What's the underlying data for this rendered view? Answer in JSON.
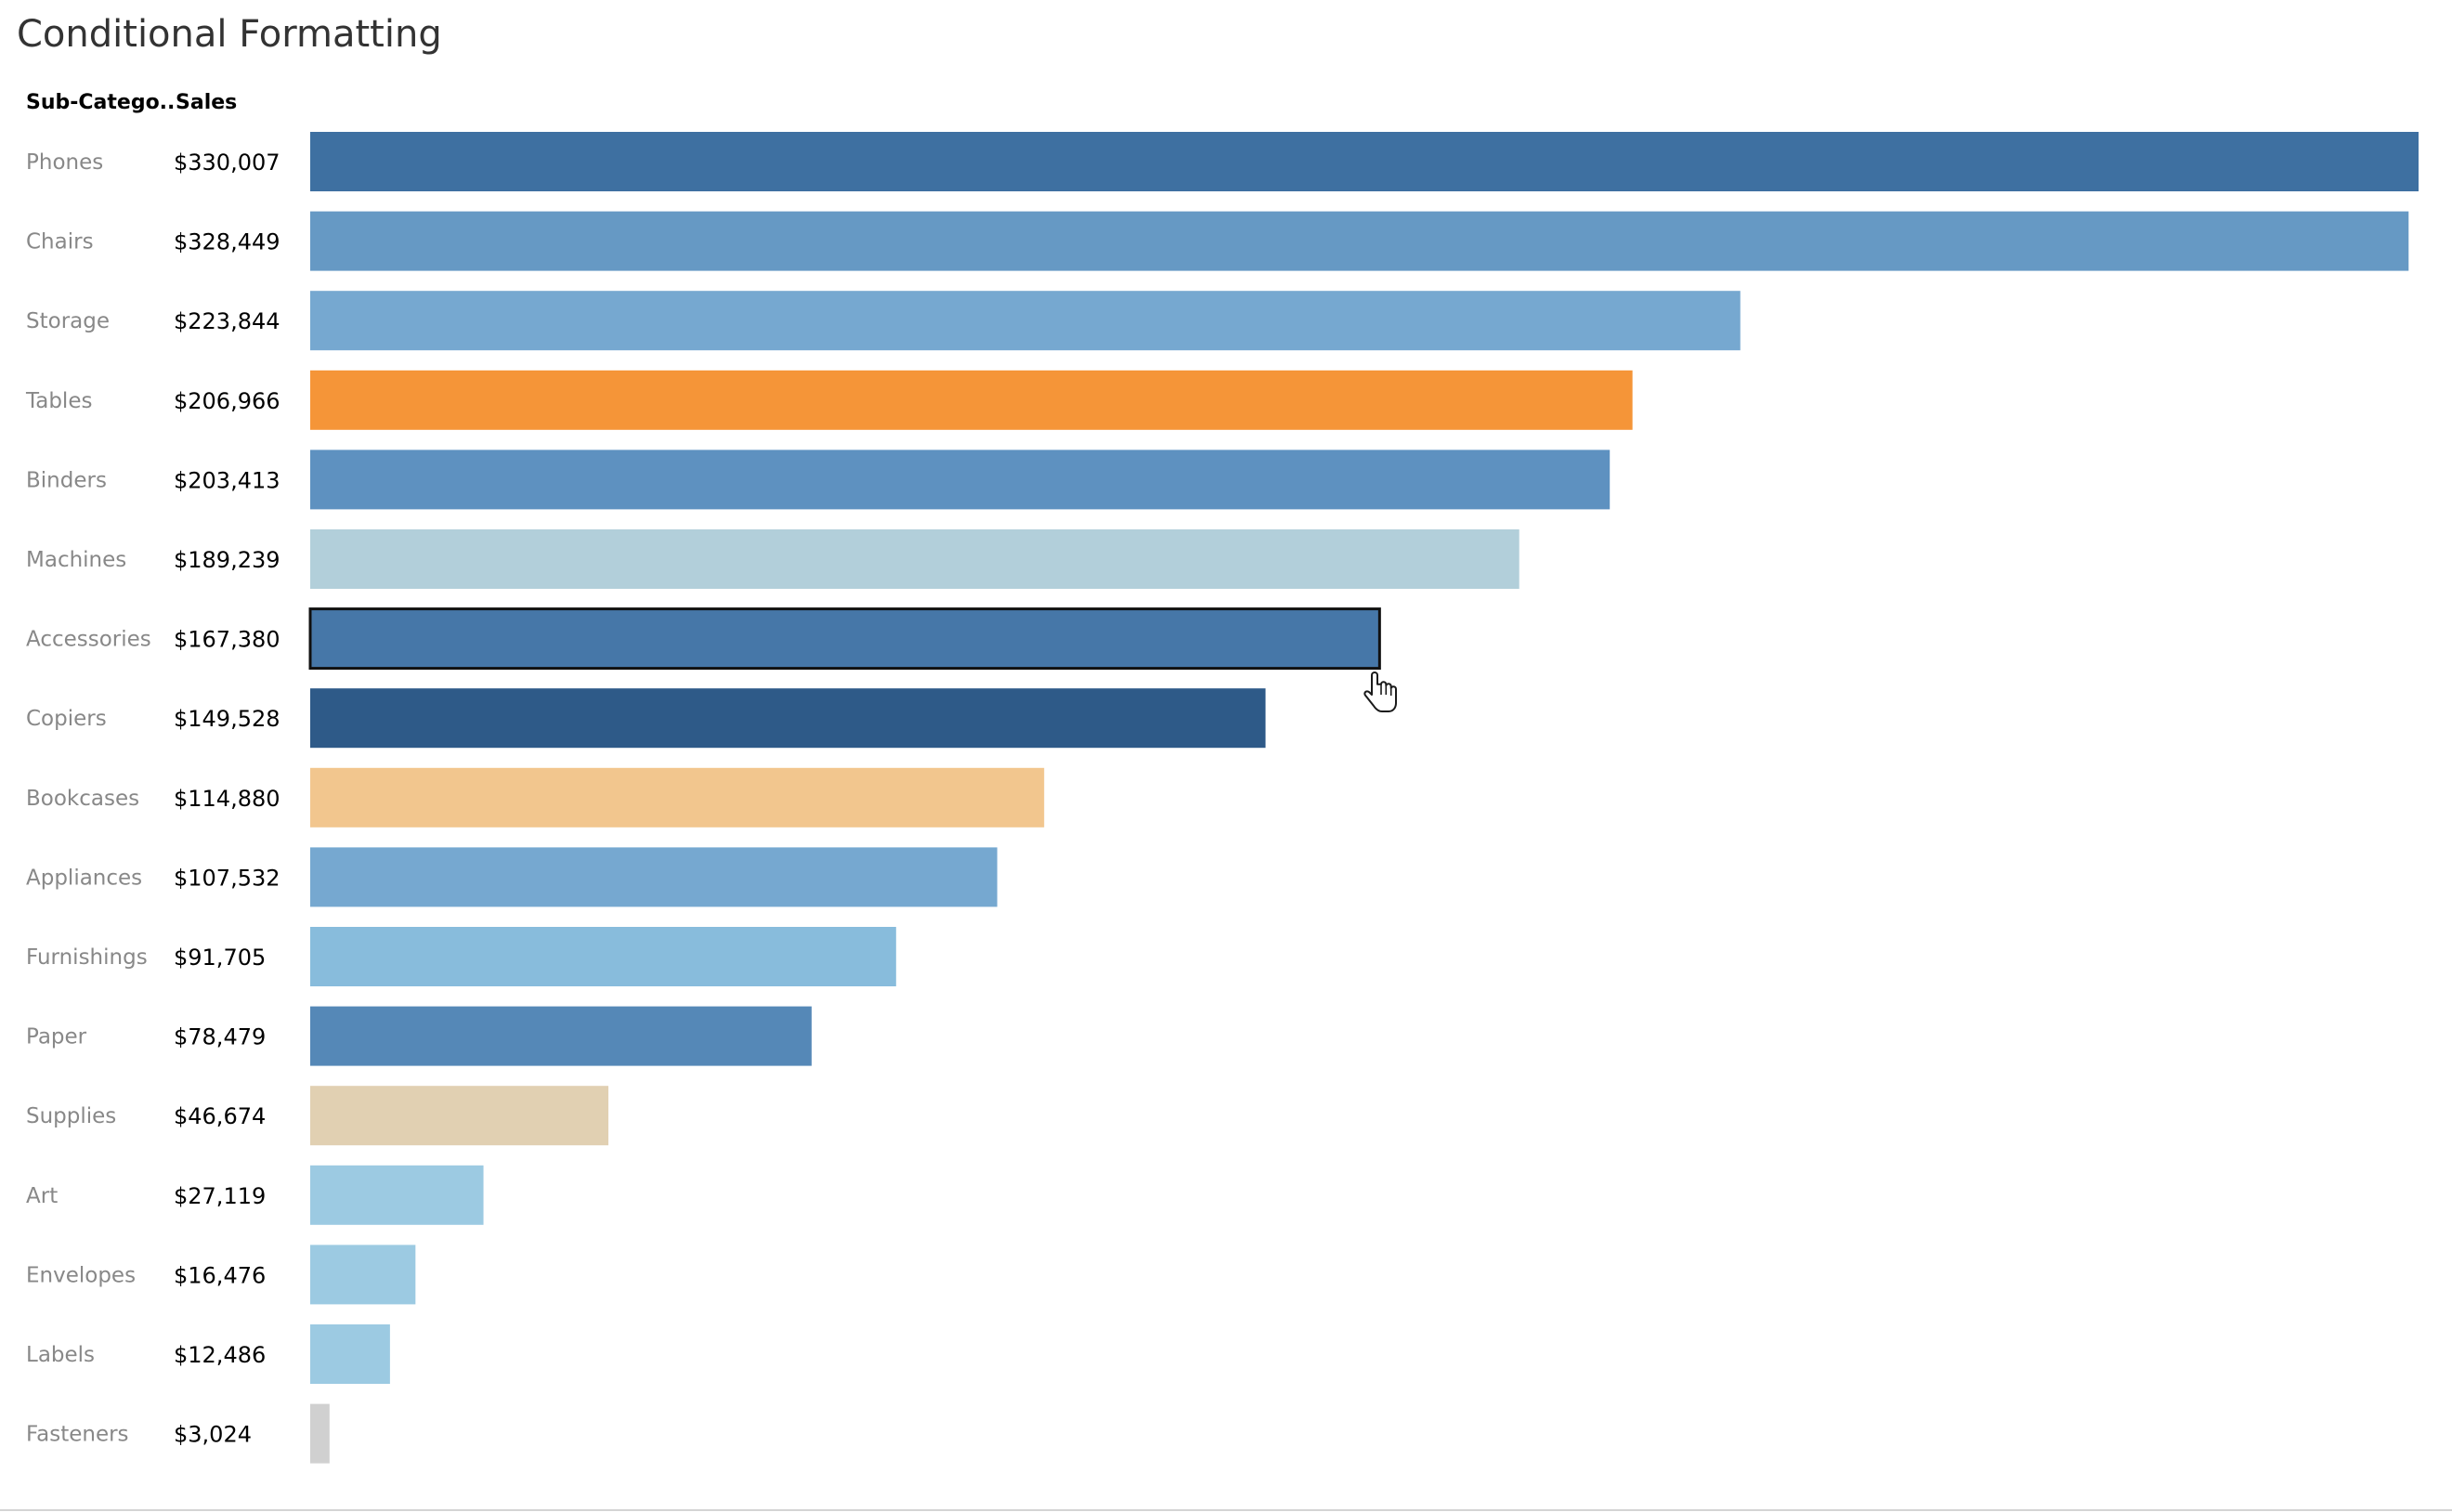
{
  "dashboard": {
    "title": "Conditional Formatting"
  },
  "headers": {
    "sub_category": "Sub-Catego..",
    "sales": "Sales"
  },
  "chart_data": {
    "type": "bar",
    "orientation": "horizontal",
    "title": "Conditional Formatting",
    "categories": [
      "Phones",
      "Chairs",
      "Storage",
      "Tables",
      "Binders",
      "Machines",
      "Accessories",
      "Copiers",
      "Bookcases",
      "Appliances",
      "Furnishings",
      "Paper",
      "Supplies",
      "Art",
      "Envelopes",
      "Labels",
      "Fasteners"
    ],
    "values": [
      330007,
      328449,
      223844,
      206966,
      203413,
      189239,
      167380,
      149528,
      114880,
      107532,
      91705,
      78479,
      46674,
      27119,
      16476,
      12486,
      3024
    ],
    "value_labels": [
      "$330,007",
      "$328,449",
      "$223,844",
      "$206,966",
      "$203,413",
      "$189,239",
      "$167,380",
      "$149,528",
      "$114,880",
      "$107,532",
      "$91,705",
      "$78,479",
      "$46,674",
      "$27,119",
      "$16,476",
      "$12,486",
      "$3,024"
    ],
    "colors": [
      "#3e70a1",
      "#6699c4",
      "#76a8d0",
      "#f59538",
      "#5e91c0",
      "#b2cfda",
      "#4677a8",
      "#2e5a88",
      "#f2c68e",
      "#76a8d0",
      "#88bcdc",
      "#5588b7",
      "#e1d0b2",
      "#9ccae2",
      "#9ccae2",
      "#9ccae2",
      "#d0d0d0"
    ],
    "selected": "Accessories",
    "xlim": [
      0,
      330007
    ],
    "grid": false,
    "legend": "none"
  }
}
